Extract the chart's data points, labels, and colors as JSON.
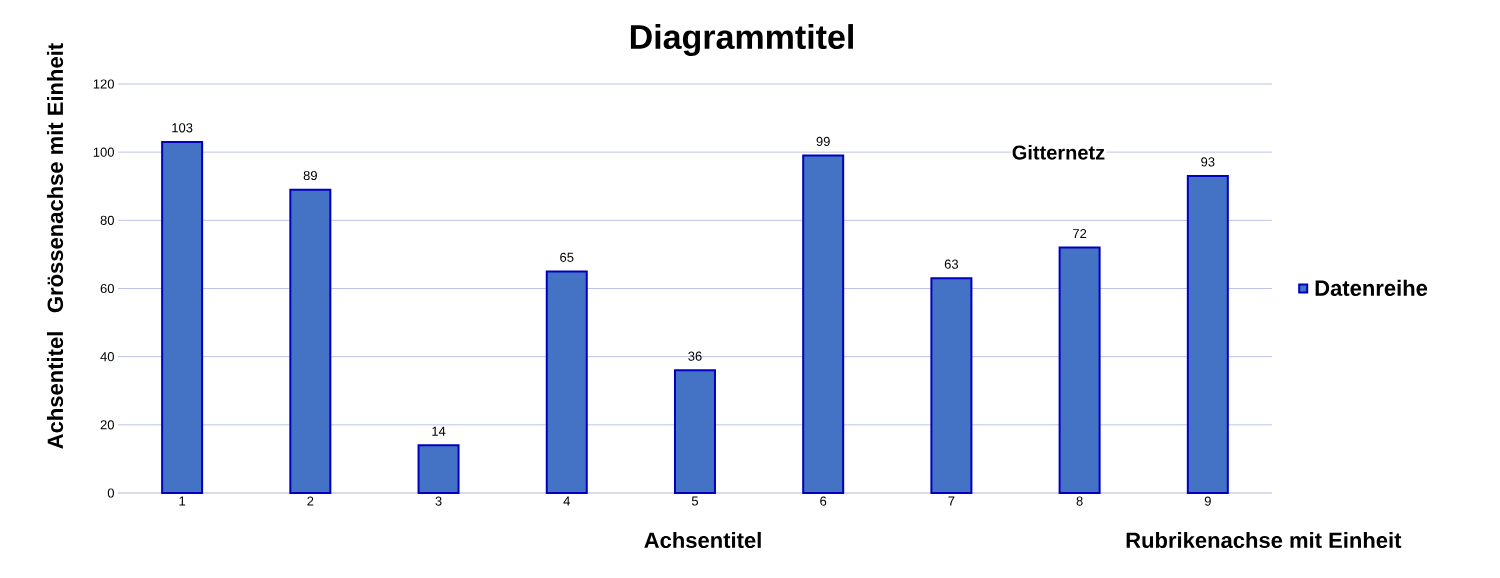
{
  "chart_data": {
    "type": "bar",
    "title": "Diagrammtitel",
    "xlabel": "Achsentitel",
    "ylabel": "Achsentitel",
    "categories": [
      "1",
      "2",
      "3",
      "4",
      "5",
      "6",
      "7",
      "8",
      "9"
    ],
    "series": [
      {
        "name": "Datenreihe",
        "color": "#4472c4",
        "values": [
          103,
          89,
          14,
          65,
          36,
          99,
          63,
          72,
          93
        ]
      }
    ],
    "ylim": [
      0,
      120
    ],
    "yticks": [
      0,
      20,
      40,
      60,
      80,
      100,
      120
    ],
    "grid": "y",
    "legend": "right",
    "data_labels": true,
    "annotations": [
      "Grössenachse mit Einheit",
      "Rubrikenachse mit Einheit",
      "Gitternetz"
    ]
  }
}
